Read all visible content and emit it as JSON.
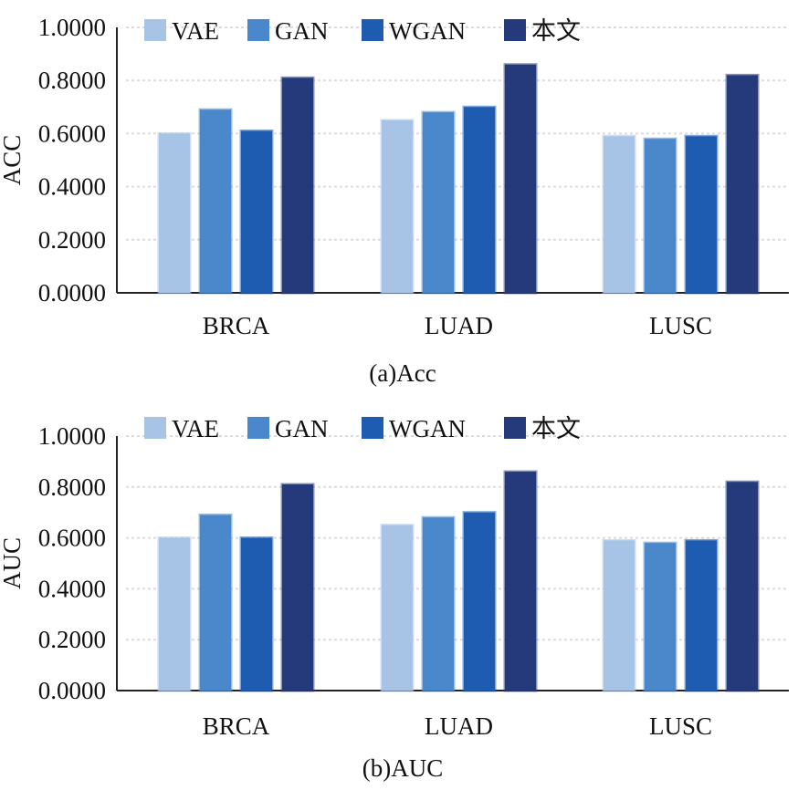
{
  "series_colors": [
    "#a7c3e6",
    "#4a87cb",
    "#1d5cb0",
    "#253a7a"
  ],
  "chart_data": [
    {
      "type": "bar",
      "caption": "(a)Acc",
      "ylabel": "ACC",
      "xlabel": "",
      "ylim": [
        0,
        1
      ],
      "yticks": [
        "0.0000",
        "0.2000",
        "0.4000",
        "0.6000",
        "0.8000",
        "1.0000"
      ],
      "grid": true,
      "legend_position": "top-left",
      "categories": [
        "BRCA",
        "LUAD",
        "LUSC"
      ],
      "series": [
        {
          "name": "VAE",
          "values": [
            0.6,
            0.65,
            0.59
          ]
        },
        {
          "name": "GAN",
          "values": [
            0.69,
            0.68,
            0.58
          ]
        },
        {
          "name": "WGAN",
          "values": [
            0.61,
            0.7,
            0.59
          ]
        },
        {
          "name": "本文",
          "values": [
            0.81,
            0.86,
            0.82
          ]
        }
      ]
    },
    {
      "type": "bar",
      "caption": "(b)AUC",
      "ylabel": "AUC",
      "xlabel": "",
      "ylim": [
        0,
        1
      ],
      "yticks": [
        "0.0000",
        "0.2000",
        "0.4000",
        "0.6000",
        "0.8000",
        "1.0000"
      ],
      "grid": true,
      "legend_position": "top-left",
      "categories": [
        "BRCA",
        "LUAD",
        "LUSC"
      ],
      "series": [
        {
          "name": "VAE",
          "values": [
            0.6,
            0.65,
            0.59
          ]
        },
        {
          "name": "GAN",
          "values": [
            0.69,
            0.68,
            0.58
          ]
        },
        {
          "name": "WGAN",
          "values": [
            0.6,
            0.7,
            0.59
          ]
        },
        {
          "name": "本文",
          "values": [
            0.81,
            0.86,
            0.82
          ]
        }
      ]
    }
  ]
}
